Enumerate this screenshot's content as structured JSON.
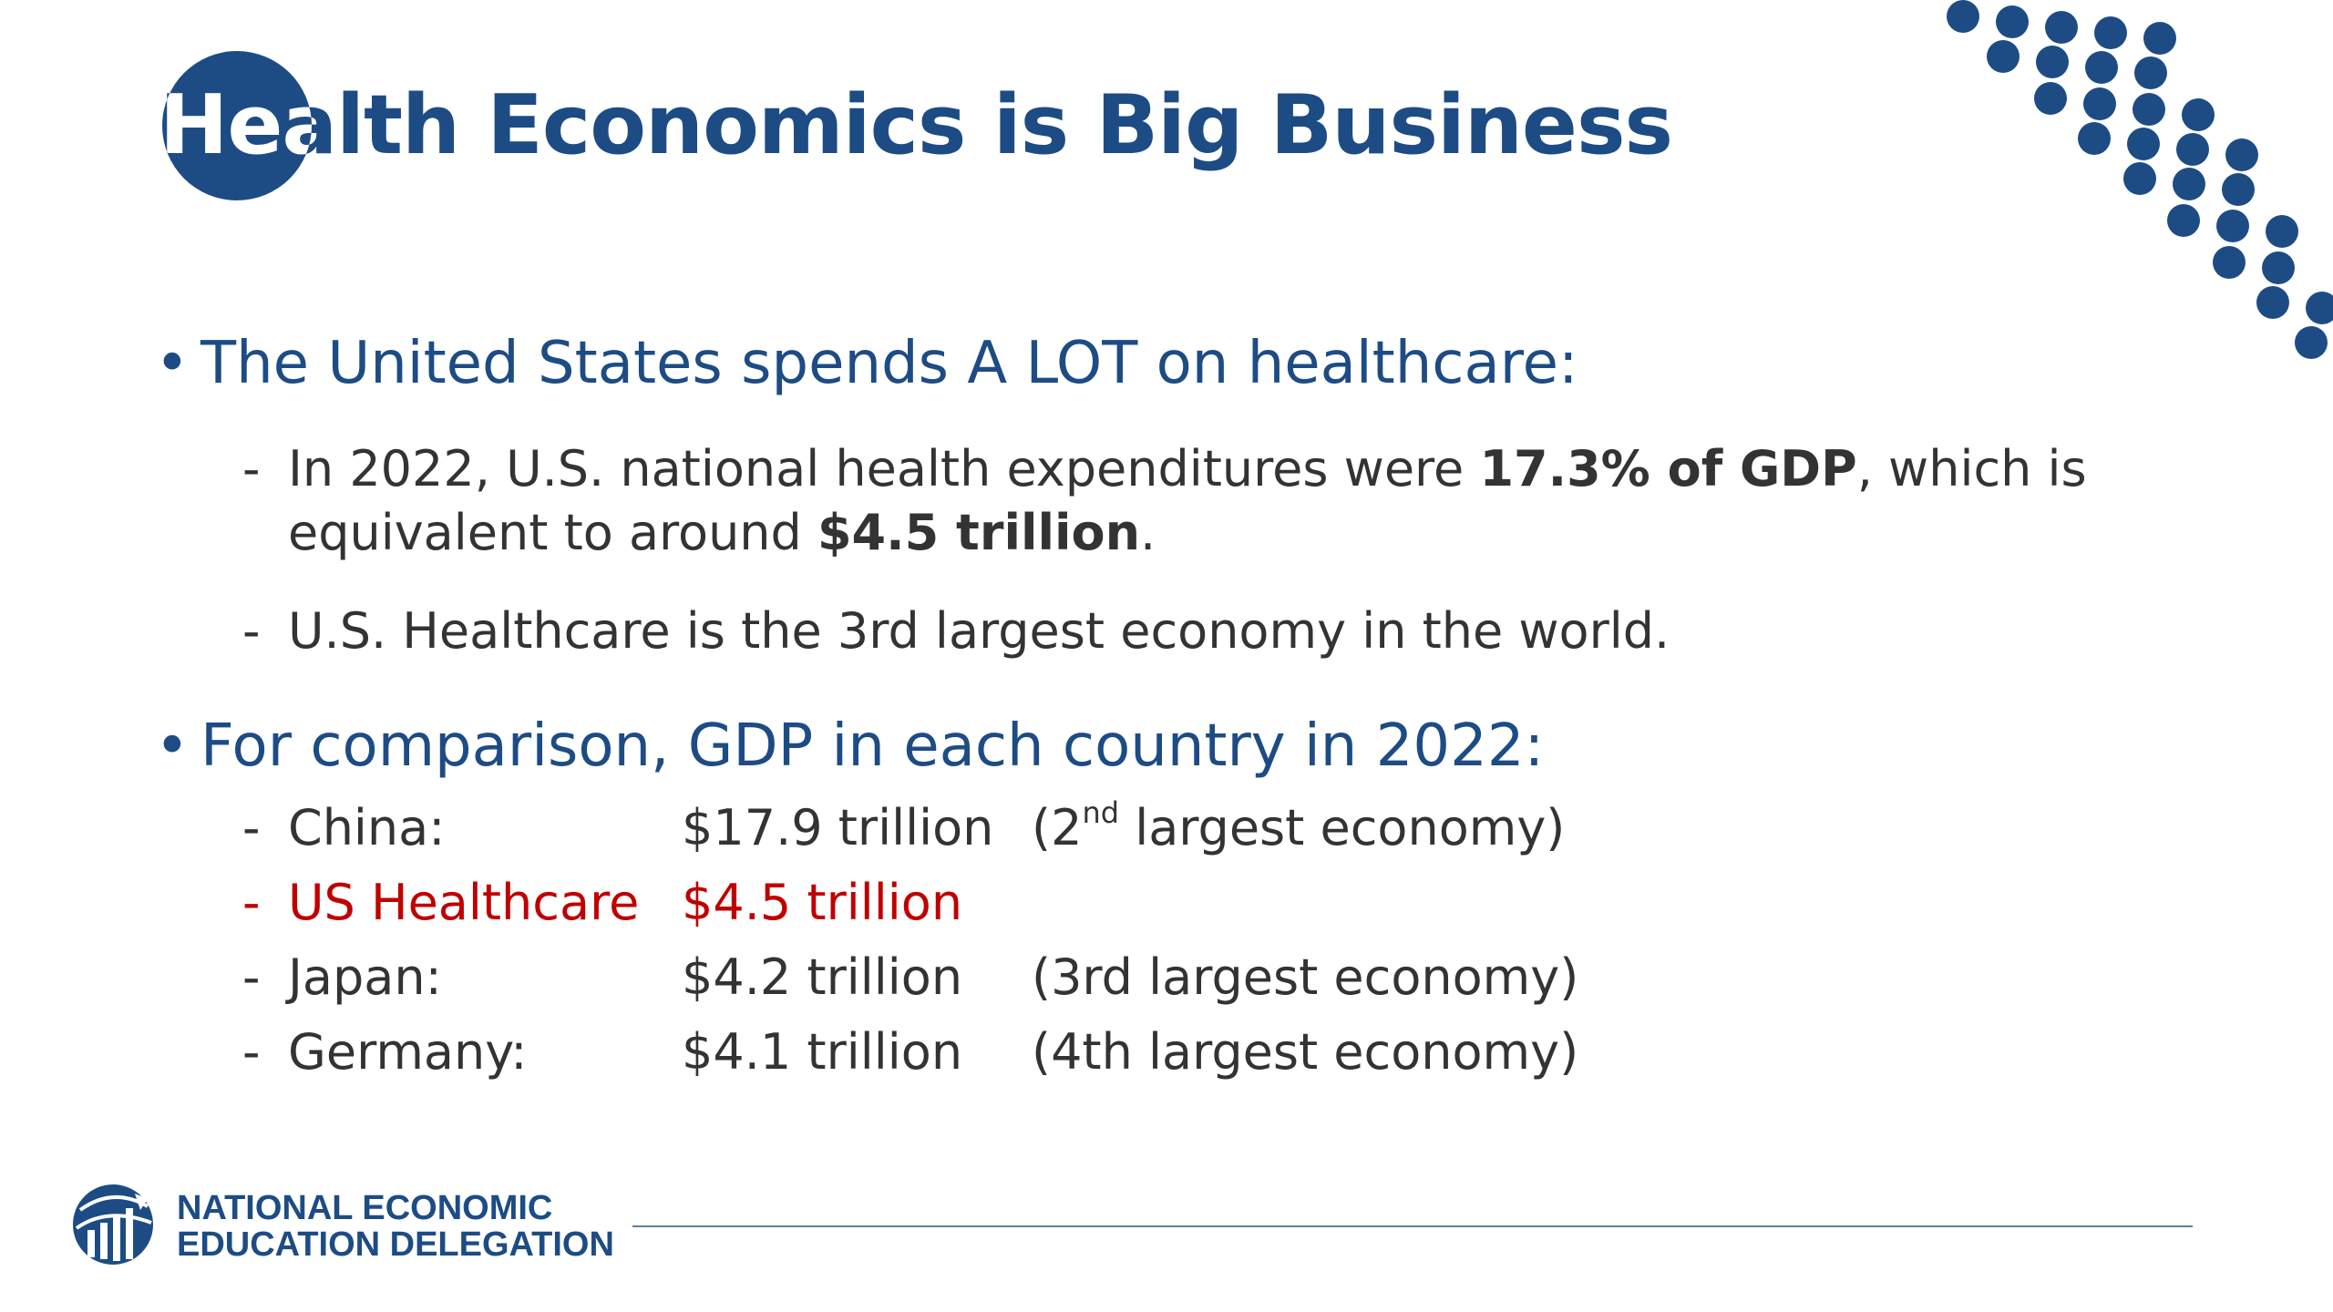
{
  "colors": {
    "navy": "#1d4c85",
    "body_text": "#333333",
    "highlight_red": "#c00000",
    "rule": "#5a7fa8"
  },
  "title": {
    "text": "Health Economics is Big Business"
  },
  "bullets": [
    {
      "text": "The United States spends A LOT on healthcare:",
      "subs": [
        {
          "line1_pre": "In 2022, U.S. national health expenditures were ",
          "line1_bold": "17.3% of GDP",
          "line1_post": ", which is",
          "line2_pre": "equivalent to around ",
          "line2_bold": "$4.5 trillion",
          "line2_post": "."
        },
        {
          "text": "U.S. Healthcare is the 3rd largest economy in the world."
        }
      ]
    },
    {
      "text": "For comparison, GDP in each country in 2022:",
      "rows": [
        {
          "name": "China:",
          "value": "$17.9 trillion",
          "note_pre": "(2",
          "note_sup": "nd",
          "note_post": " largest economy)"
        },
        {
          "name": "US Healthcare",
          "value": "$4.5 trillion"
        },
        {
          "name": "Japan:",
          "value": "$4.2 trillion",
          "note": "(3rd largest economy)"
        },
        {
          "name": "Germany:",
          "value": "$4.1 trillion",
          "note": "(4th largest economy)"
        }
      ]
    }
  ],
  "symbols": {
    "bullet": "•",
    "dash": "-"
  },
  "footer": {
    "org_line1": "NATIONAL ECONOMIC",
    "org_line2": "EDUCATION DELEGATION",
    "logo_icon": "bar-chart-globe-icon"
  },
  "decoration": {
    "dots_icon": "dot-pattern-icon"
  }
}
